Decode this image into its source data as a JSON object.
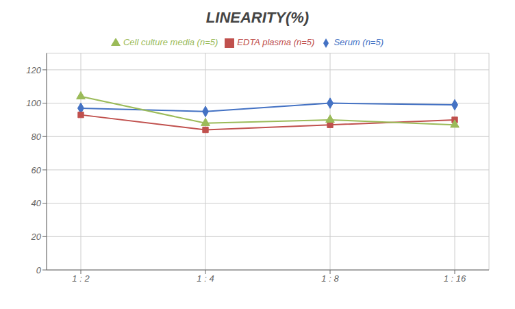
{
  "chart_data": {
    "type": "line",
    "title": "LINEARITY(%)",
    "categories": [
      "1 : 2",
      "1 : 4",
      "1 : 8",
      "1 : 16"
    ],
    "series": [
      {
        "name": "Serum (n=5)",
        "color": "#4472C4",
        "marker": "diamond",
        "values": [
          97,
          95,
          100,
          99
        ]
      },
      {
        "name": "EDTA plasma (n=5)",
        "color": "#C0504D",
        "marker": "square",
        "values": [
          93,
          84,
          87,
          90
        ]
      },
      {
        "name": "Cell culture media (n=5)",
        "color": "#9BBB59",
        "marker": "triangle",
        "values": [
          104,
          88,
          90,
          87
        ]
      }
    ],
    "ylim": [
      0,
      130
    ],
    "yticks": [
      0,
      20,
      40,
      60,
      80,
      100,
      120
    ],
    "grid": true,
    "legend": "top"
  }
}
